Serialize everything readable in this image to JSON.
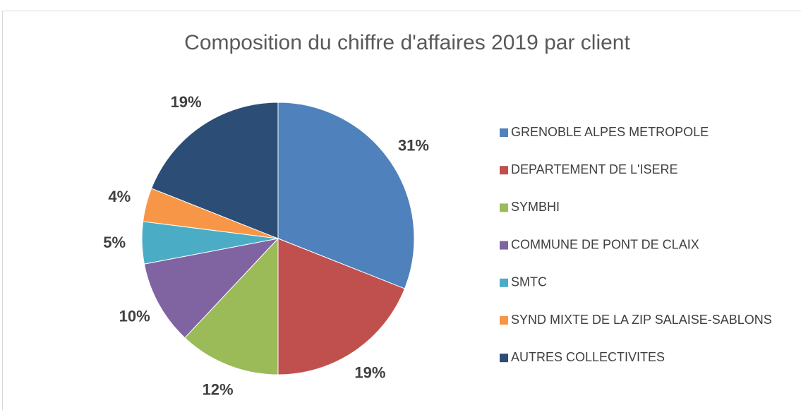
{
  "chart_data": {
    "type": "pie",
    "title": "Composition du chiffre d'affaires 2019 par client",
    "categories": [
      "GRENOBLE ALPES METROPOLE",
      "DEPARTEMENT DE L'ISERE",
      "SYMBHI",
      "COMMUNE DE PONT DE CLAIX",
      "SMTC",
      "SYND MIXTE DE LA ZIP SALAISE-SABLONS",
      "AUTRES COLLECTIVITES"
    ],
    "values": [
      31,
      19,
      12,
      10,
      5,
      4,
      19
    ],
    "value_labels": [
      "31%",
      "19%",
      "12%",
      "10%",
      "5%",
      "4%",
      "19%"
    ],
    "colors": [
      "#4f81bd",
      "#c0504d",
      "#9bbb59",
      "#8064a2",
      "#4bacc6",
      "#f79646",
      "#2c4d75"
    ],
    "legend": "right"
  }
}
